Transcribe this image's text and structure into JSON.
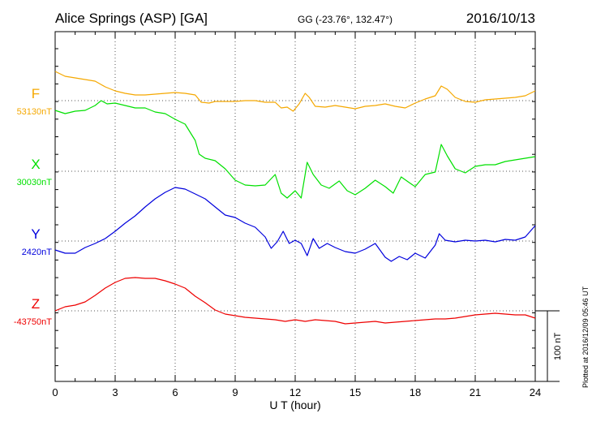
{
  "header": {
    "title": "Alice Springs (ASP)  [GA]",
    "coords": "GG (-23.76°, 132.47°)",
    "date": "2016/10/13"
  },
  "plotted_note": "Plotted at 2016/12/09 05:46 UT",
  "scale_label": "100 nT",
  "colors": {
    "F": "#f5a800",
    "X": "#00e000",
    "Y": "#0000dd",
    "Z": "#ee0000",
    "axis": "#000000",
    "grid": "#555555"
  },
  "chart_data": {
    "type": "line",
    "xlabel": "U T (hour)",
    "xlim": [
      0,
      24
    ],
    "xticks": [
      "0",
      "3",
      "6",
      "9",
      "12",
      "15",
      "18",
      "21",
      "24"
    ],
    "series": [
      {
        "name": "F",
        "baseline_label": "53130nT",
        "color": "#f5a800",
        "points": [
          [
            0,
            88
          ],
          [
            0.5,
            94
          ],
          [
            1,
            96
          ],
          [
            1.5,
            98
          ],
          [
            2,
            100
          ],
          [
            2.5,
            107
          ],
          [
            3,
            112
          ],
          [
            3.5,
            115
          ],
          [
            4,
            117
          ],
          [
            4.5,
            117
          ],
          [
            5,
            116
          ],
          [
            5.5,
            115
          ],
          [
            6,
            114
          ],
          [
            6.5,
            115
          ],
          [
            7,
            117
          ],
          [
            7.3,
            126
          ],
          [
            7.7,
            127
          ],
          [
            8,
            125
          ],
          [
            8.5,
            125
          ],
          [
            9,
            125
          ],
          [
            9.5,
            124
          ],
          [
            10,
            124
          ],
          [
            10.5,
            126
          ],
          [
            11,
            126
          ],
          [
            11.3,
            133
          ],
          [
            11.6,
            132
          ],
          [
            11.9,
            137
          ],
          [
            12.2,
            128
          ],
          [
            12.5,
            115
          ],
          [
            12.7,
            120
          ],
          [
            13,
            131
          ],
          [
            13.5,
            132
          ],
          [
            14,
            130
          ],
          [
            14.5,
            132
          ],
          [
            15,
            134
          ],
          [
            15.5,
            131
          ],
          [
            16,
            130
          ],
          [
            16.5,
            128
          ],
          [
            17,
            131
          ],
          [
            17.5,
            133
          ],
          [
            18,
            127
          ],
          [
            18.5,
            122
          ],
          [
            19,
            118
          ],
          [
            19.3,
            106
          ],
          [
            19.6,
            110
          ],
          [
            20,
            120
          ],
          [
            20.5,
            125
          ],
          [
            21,
            126
          ],
          [
            21.5,
            123
          ],
          [
            22,
            122
          ],
          [
            23,
            120
          ],
          [
            23.5,
            118
          ],
          [
            24,
            112
          ]
        ]
      },
      {
        "name": "X",
        "baseline_label": "30030nT",
        "color": "#00e000",
        "points": [
          [
            0,
            136
          ],
          [
            0.5,
            140
          ],
          [
            1,
            137
          ],
          [
            1.5,
            136
          ],
          [
            2,
            130
          ],
          [
            2.3,
            124
          ],
          [
            2.6,
            128
          ],
          [
            3,
            127
          ],
          [
            3.5,
            130
          ],
          [
            4,
            133
          ],
          [
            4.5,
            133
          ],
          [
            5,
            138
          ],
          [
            5.5,
            140
          ],
          [
            6,
            147
          ],
          [
            6.5,
            153
          ],
          [
            6.8,
            165
          ],
          [
            7,
            173
          ],
          [
            7.2,
            190
          ],
          [
            7.5,
            195
          ],
          [
            8,
            198
          ],
          [
            8.5,
            208
          ],
          [
            9,
            222
          ],
          [
            9.5,
            228
          ],
          [
            10,
            229
          ],
          [
            10.5,
            228
          ],
          [
            11,
            215
          ],
          [
            11.3,
            238
          ],
          [
            11.6,
            244
          ],
          [
            12,
            235
          ],
          [
            12.3,
            244
          ],
          [
            12.6,
            200
          ],
          [
            12.9,
            215
          ],
          [
            13.3,
            228
          ],
          [
            13.7,
            232
          ],
          [
            14.2,
            223
          ],
          [
            14.6,
            235
          ],
          [
            15,
            240
          ],
          [
            15.5,
            232
          ],
          [
            16,
            222
          ],
          [
            16.5,
            230
          ],
          [
            16.9,
            238
          ],
          [
            17.3,
            218
          ],
          [
            17.7,
            225
          ],
          [
            18,
            230
          ],
          [
            18.5,
            215
          ],
          [
            19,
            212
          ],
          [
            19.3,
            178
          ],
          [
            19.6,
            192
          ],
          [
            20,
            208
          ],
          [
            20.5,
            213
          ],
          [
            21,
            205
          ],
          [
            21.5,
            203
          ],
          [
            22,
            203
          ],
          [
            22.5,
            199
          ],
          [
            23,
            197
          ],
          [
            23.5,
            195
          ],
          [
            24,
            193
          ]
        ]
      },
      {
        "name": "Y",
        "baseline_label": "2420nT",
        "color": "#0000dd",
        "points": [
          [
            0,
            308
          ],
          [
            0.5,
            312
          ],
          [
            1,
            312
          ],
          [
            1.5,
            305
          ],
          [
            2,
            300
          ],
          [
            2.5,
            294
          ],
          [
            3,
            285
          ],
          [
            3.5,
            275
          ],
          [
            4,
            266
          ],
          [
            4.5,
            255
          ],
          [
            5,
            245
          ],
          [
            5.5,
            237
          ],
          [
            6,
            231
          ],
          [
            6.5,
            233
          ],
          [
            7,
            239
          ],
          [
            7.5,
            245
          ],
          [
            8,
            255
          ],
          [
            8.5,
            265
          ],
          [
            9,
            268
          ],
          [
            9.5,
            275
          ],
          [
            10,
            280
          ],
          [
            10.5,
            292
          ],
          [
            10.8,
            306
          ],
          [
            11.1,
            298
          ],
          [
            11.4,
            285
          ],
          [
            11.7,
            300
          ],
          [
            12,
            296
          ],
          [
            12.3,
            300
          ],
          [
            12.6,
            315
          ],
          [
            12.9,
            294
          ],
          [
            13.2,
            306
          ],
          [
            13.6,
            300
          ],
          [
            14,
            305
          ],
          [
            14.5,
            310
          ],
          [
            15,
            312
          ],
          [
            15.5,
            307
          ],
          [
            16,
            300
          ],
          [
            16.5,
            317
          ],
          [
            16.8,
            322
          ],
          [
            17.2,
            316
          ],
          [
            17.6,
            320
          ],
          [
            18,
            312
          ],
          [
            18.5,
            318
          ],
          [
            19,
            302
          ],
          [
            19.2,
            288
          ],
          [
            19.5,
            296
          ],
          [
            20,
            298
          ],
          [
            20.5,
            296
          ],
          [
            21,
            297
          ],
          [
            21.5,
            296
          ],
          [
            22,
            298
          ],
          [
            22.5,
            295
          ],
          [
            23,
            296
          ],
          [
            23.5,
            292
          ],
          [
            24,
            278
          ]
        ]
      },
      {
        "name": "Z",
        "baseline_label": "-43750nT",
        "color": "#ee0000",
        "points": [
          [
            0,
            383
          ],
          [
            0.5,
            378
          ],
          [
            1,
            376
          ],
          [
            1.5,
            372
          ],
          [
            2,
            364
          ],
          [
            2.5,
            355
          ],
          [
            3,
            348
          ],
          [
            3.5,
            343
          ],
          [
            4,
            342
          ],
          [
            4.5,
            343
          ],
          [
            5,
            343
          ],
          [
            5.5,
            346
          ],
          [
            6,
            350
          ],
          [
            6.5,
            355
          ],
          [
            7,
            365
          ],
          [
            7.5,
            373
          ],
          [
            8,
            382
          ],
          [
            8.5,
            387
          ],
          [
            9,
            389
          ],
          [
            9.5,
            391
          ],
          [
            10,
            392
          ],
          [
            10.5,
            393
          ],
          [
            11,
            394
          ],
          [
            11.5,
            396
          ],
          [
            12,
            394
          ],
          [
            12.5,
            396
          ],
          [
            13,
            394
          ],
          [
            13.5,
            395
          ],
          [
            14,
            396
          ],
          [
            14.5,
            399
          ],
          [
            15,
            398
          ],
          [
            15.5,
            397
          ],
          [
            16,
            396
          ],
          [
            16.5,
            398
          ],
          [
            17,
            397
          ],
          [
            17.5,
            396
          ],
          [
            18,
            395
          ],
          [
            18.5,
            394
          ],
          [
            19,
            393
          ],
          [
            19.5,
            393
          ],
          [
            20,
            392
          ],
          [
            20.5,
            390
          ],
          [
            21,
            388
          ],
          [
            21.5,
            387
          ],
          [
            22,
            386
          ],
          [
            22.5,
            387
          ],
          [
            23,
            388
          ],
          [
            23.5,
            388
          ],
          [
            24,
            392
          ]
        ]
      }
    ]
  }
}
